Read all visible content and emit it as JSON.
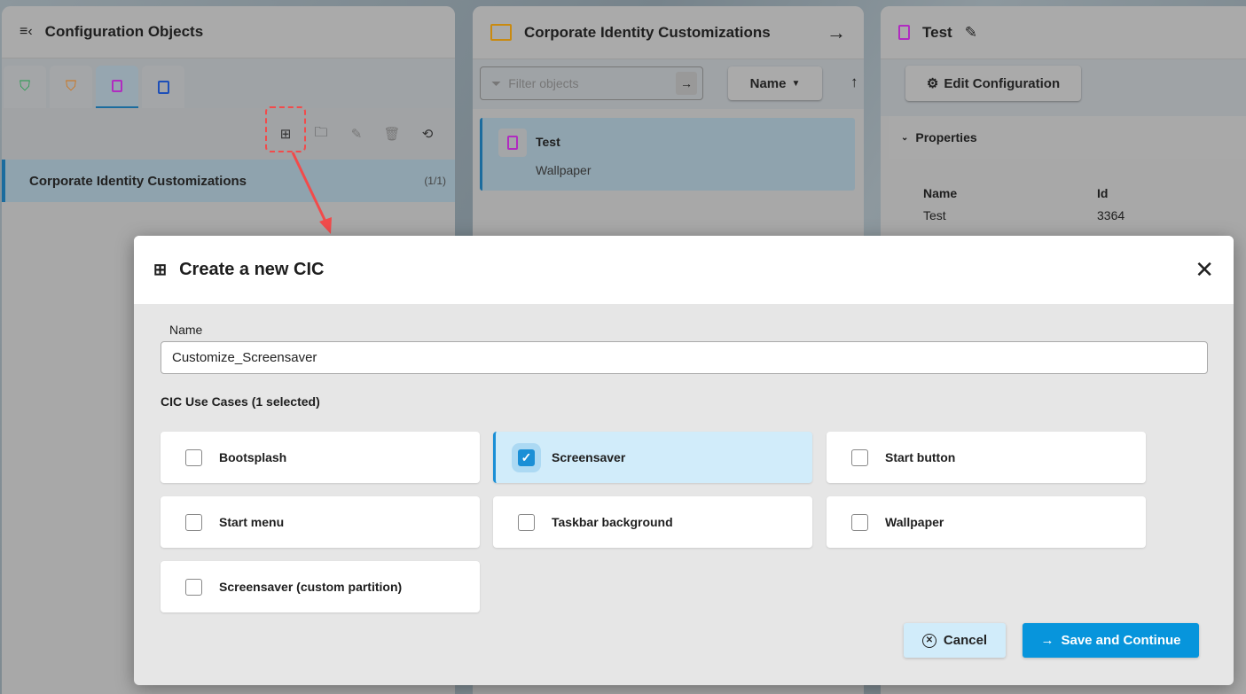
{
  "left_panel": {
    "title": "Configuration Objects",
    "tabs": [
      {
        "icon": "shield-icon",
        "color": "#1f9a4a"
      },
      {
        "icon": "graduation-shield-icon",
        "color": "#d07010"
      },
      {
        "icon": "chip-icon",
        "color": "#b02cc0",
        "active": true
      },
      {
        "icon": "document-link-icon",
        "color": "#1d4fb8"
      }
    ],
    "toolbar": [
      "add-cic-icon",
      "new-folder-icon",
      "edit-icon",
      "delete-icon",
      "refresh-icon"
    ],
    "selected_item": {
      "label": "Corporate Identity Customizations",
      "count": "(1/1)"
    }
  },
  "middle_panel": {
    "title": "Corporate Identity Customizations",
    "filter_placeholder": "Filter objects",
    "sort_label": "Name",
    "item": {
      "name": "Test",
      "subtitle": "Wallpaper"
    }
  },
  "right_panel": {
    "title": "Test",
    "edit_config_label": "Edit Configuration",
    "properties_label": "Properties",
    "props": {
      "name_header": "Name",
      "id_header": "Id",
      "name_value": "Test",
      "id_value": "3364"
    }
  },
  "modal": {
    "title": "Create a new CIC",
    "name_label": "Name",
    "name_value": "Customize_Screensaver",
    "section_label": "CIC Use Cases (1 selected)",
    "use_cases": [
      {
        "label": "Bootsplash",
        "checked": false
      },
      {
        "label": "Screensaver",
        "checked": true
      },
      {
        "label": "Start button",
        "checked": false
      },
      {
        "label": "Start menu",
        "checked": false
      },
      {
        "label": "Taskbar background",
        "checked": false
      },
      {
        "label": "Wallpaper",
        "checked": false
      },
      {
        "label": "Screensaver (custom partition)",
        "checked": false
      }
    ],
    "cancel_label": "Cancel",
    "save_label": "Save and Continue"
  },
  "colors": {
    "accent": "#1a8fd6",
    "annotation": "#f24b4b"
  }
}
